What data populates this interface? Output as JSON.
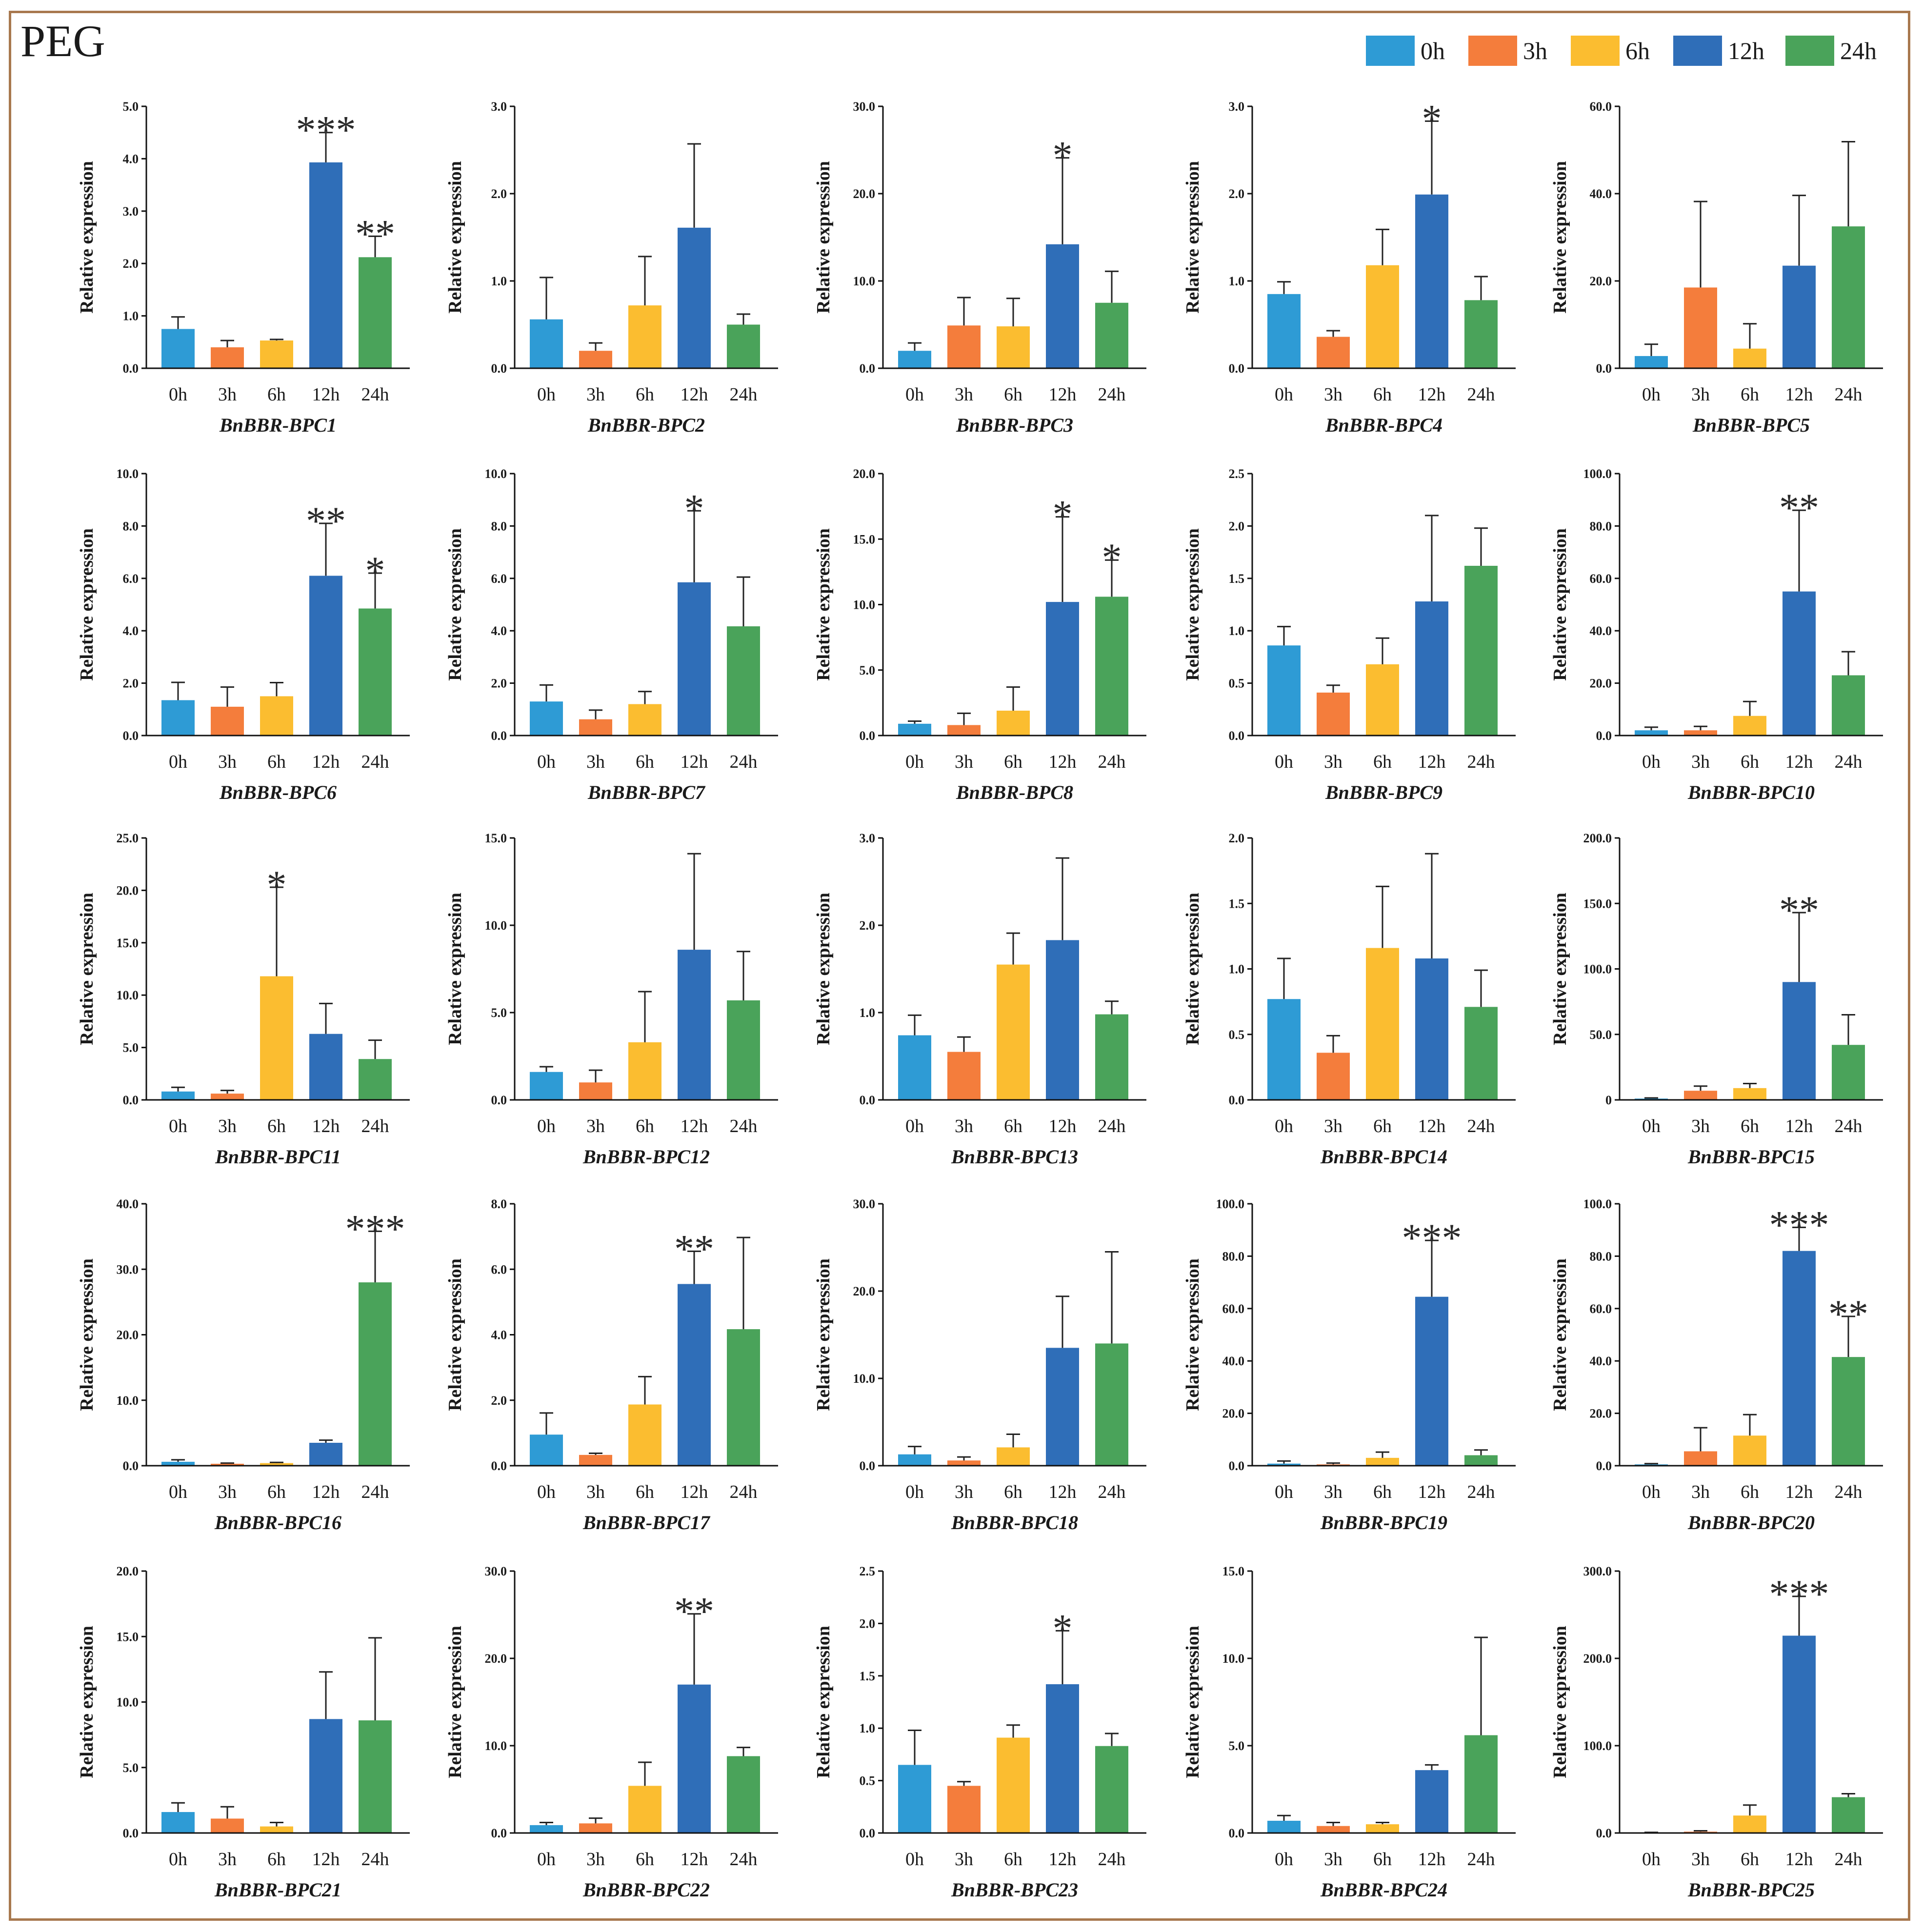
{
  "figure": {
    "title": "PEG",
    "legend": [
      "0h",
      "3h",
      "6h",
      "12h",
      "24h"
    ],
    "colors": [
      "#2e9bd5",
      "#f47d3c",
      "#fbbd30",
      "#2f6eb8",
      "#4aa35a"
    ],
    "ylabel": "Relative expression"
  },
  "chart_data": [
    {
      "type": "bar",
      "title": "BnBBR-BPC1",
      "ylabel": "Relative expression",
      "categories": [
        "0h",
        "3h",
        "6h",
        "12h",
        "24h"
      ],
      "ylim": [
        0,
        5
      ],
      "ticks": [
        "0.0",
        "1.0",
        "2.0",
        "3.0",
        "4.0",
        "5.0"
      ],
      "values": [
        0.75,
        0.4,
        0.53,
        3.93,
        2.12
      ],
      "errors": [
        0.23,
        0.13,
        0.02,
        0.57,
        0.4
      ],
      "annotations": [
        "",
        "",
        "",
        "***",
        "**"
      ]
    },
    {
      "type": "bar",
      "title": "BnBBR-BPC2",
      "ylabel": "Relative expression",
      "categories": [
        "0h",
        "3h",
        "6h",
        "12h",
        "24h"
      ],
      "ylim": [
        0,
        3
      ],
      "ticks": [
        "0.0",
        "1.0",
        "2.0",
        "3.0"
      ],
      "values": [
        0.56,
        0.2,
        0.72,
        1.61,
        0.5
      ],
      "errors": [
        0.48,
        0.09,
        0.56,
        0.96,
        0.12
      ],
      "annotations": [
        "",
        "",
        "",
        "",
        ""
      ]
    },
    {
      "type": "bar",
      "title": "BnBBR-BPC3",
      "ylabel": "Relative expression",
      "categories": [
        "0h",
        "3h",
        "6h",
        "12h",
        "24h"
      ],
      "ylim": [
        0,
        30
      ],
      "ticks": [
        "0.0",
        "10.0",
        "20.0",
        "30.0"
      ],
      "values": [
        2.0,
        4.9,
        4.8,
        14.2,
        7.5
      ],
      "errors": [
        0.9,
        3.2,
        3.2,
        9.9,
        3.6
      ],
      "annotations": [
        "",
        "",
        "",
        "*",
        ""
      ]
    },
    {
      "type": "bar",
      "title": "BnBBR-BPC4",
      "ylabel": "Relative expression",
      "categories": [
        "0h",
        "3h",
        "6h",
        "12h",
        "24h"
      ],
      "ylim": [
        0,
        3
      ],
      "ticks": [
        "0.0",
        "1.0",
        "2.0",
        "3.0"
      ],
      "values": [
        0.85,
        0.36,
        1.18,
        1.99,
        0.78
      ],
      "errors": [
        0.14,
        0.07,
        0.41,
        0.84,
        0.27
      ],
      "annotations": [
        "",
        "",
        "",
        "*",
        ""
      ]
    },
    {
      "type": "bar",
      "title": "BnBBR-BPC5",
      "ylabel": "Relative expression",
      "categories": [
        "0h",
        "3h",
        "6h",
        "12h",
        "24h"
      ],
      "ylim": [
        0,
        60
      ],
      "ticks": [
        "0.0",
        "20.0",
        "40.0",
        "60.0"
      ],
      "values": [
        2.8,
        18.5,
        4.5,
        23.5,
        32.5
      ],
      "errors": [
        2.7,
        19.7,
        5.7,
        16.1,
        19.4
      ],
      "annotations": [
        "",
        "",
        "",
        "",
        ""
      ]
    },
    {
      "type": "bar",
      "title": "BnBBR-BPC6",
      "ylabel": "Relative expression",
      "categories": [
        "0h",
        "3h",
        "6h",
        "12h",
        "24h"
      ],
      "ylim": [
        0,
        10
      ],
      "ticks": [
        "0.0",
        "2.0",
        "4.0",
        "6.0",
        "8.0",
        "10.0"
      ],
      "values": [
        1.35,
        1.1,
        1.5,
        6.1,
        4.85
      ],
      "errors": [
        0.68,
        0.75,
        0.52,
        2.0,
        1.35
      ],
      "annotations": [
        "",
        "",
        "",
        "**",
        "*"
      ]
    },
    {
      "type": "bar",
      "title": "BnBBR-BPC7",
      "ylabel": "Relative expression",
      "categories": [
        "0h",
        "3h",
        "6h",
        "12h",
        "24h"
      ],
      "ylim": [
        0,
        10
      ],
      "ticks": [
        "0.0",
        "2.0",
        "4.0",
        "6.0",
        "8.0",
        "10.0"
      ],
      "values": [
        1.3,
        0.62,
        1.2,
        5.85,
        4.17
      ],
      "errors": [
        0.63,
        0.35,
        0.48,
        2.73,
        1.88
      ],
      "annotations": [
        "",
        "",
        "",
        "*",
        ""
      ]
    },
    {
      "type": "bar",
      "title": "BnBBR-BPC8",
      "ylabel": "Relative expression",
      "categories": [
        "0h",
        "3h",
        "6h",
        "12h",
        "24h"
      ],
      "ylim": [
        0,
        20
      ],
      "ticks": [
        "0.0",
        "5.0",
        "10.0",
        "15.0",
        "20.0"
      ],
      "values": [
        0.9,
        0.8,
        1.9,
        10.2,
        10.6
      ],
      "errors": [
        0.2,
        0.9,
        1.8,
        6.5,
        2.8
      ],
      "annotations": [
        "",
        "",
        "",
        "*",
        "*"
      ]
    },
    {
      "type": "bar",
      "title": "BnBBR-BPC9",
      "ylabel": "Relative expression",
      "categories": [
        "0h",
        "3h",
        "6h",
        "12h",
        "24h"
      ],
      "ylim": [
        0,
        2.5
      ],
      "ticks": [
        "0.0",
        "0.5",
        "1.0",
        "1.5",
        "2.0",
        "2.5"
      ],
      "values": [
        0.86,
        0.41,
        0.68,
        1.28,
        1.62
      ],
      "errors": [
        0.18,
        0.07,
        0.25,
        0.82,
        0.36
      ],
      "annotations": [
        "",
        "",
        "",
        "",
        ""
      ]
    },
    {
      "type": "bar",
      "title": "BnBBR-BPC10",
      "ylabel": "Relative expression",
      "categories": [
        "0h",
        "3h",
        "6h",
        "12h",
        "24h"
      ],
      "ylim": [
        0,
        100
      ],
      "ticks": [
        "0.0",
        "20.0",
        "40.0",
        "60.0",
        "80.0",
        "100.0"
      ],
      "values": [
        2.0,
        2.0,
        7.5,
        55.0,
        23.0
      ],
      "errors": [
        1.2,
        1.5,
        5.5,
        31.0,
        9.0
      ],
      "annotations": [
        "",
        "",
        "",
        "**",
        ""
      ]
    },
    {
      "type": "bar",
      "title": "BnBBR-BPC11",
      "ylabel": "Relative expression",
      "categories": [
        "0h",
        "3h",
        "6h",
        "12h",
        "24h"
      ],
      "ylim": [
        0,
        25
      ],
      "ticks": [
        "0.0",
        "5.0",
        "10.0",
        "15.0",
        "20.0",
        "25.0"
      ],
      "values": [
        0.8,
        0.6,
        11.8,
        6.3,
        3.9
      ],
      "errors": [
        0.4,
        0.3,
        8.5,
        2.9,
        1.8
      ],
      "annotations": [
        "",
        "",
        "*",
        "",
        ""
      ]
    },
    {
      "type": "bar",
      "title": "BnBBR-BPC12",
      "ylabel": "Relative expression",
      "categories": [
        "0h",
        "3h",
        "6h",
        "12h",
        "24h"
      ],
      "ylim": [
        0,
        15
      ],
      "ticks": [
        "0.0",
        "5.0",
        "10.0",
        "15.0"
      ],
      "values": [
        1.6,
        1.0,
        3.3,
        8.6,
        5.7
      ],
      "errors": [
        0.3,
        0.7,
        2.9,
        5.5,
        2.8
      ],
      "annotations": [
        "",
        "",
        "",
        "",
        ""
      ]
    },
    {
      "type": "bar",
      "title": "BnBBR-BPC13",
      "ylabel": "Relative expression",
      "categories": [
        "0h",
        "3h",
        "6h",
        "12h",
        "24h"
      ],
      "ylim": [
        0,
        3
      ],
      "ticks": [
        "0.0",
        "1.0",
        "2.0",
        "3.0"
      ],
      "values": [
        0.74,
        0.55,
        1.55,
        1.83,
        0.98
      ],
      "errors": [
        0.23,
        0.17,
        0.36,
        0.94,
        0.15
      ],
      "annotations": [
        "",
        "",
        "",
        "",
        ""
      ]
    },
    {
      "type": "bar",
      "title": "BnBBR-BPC14",
      "ylabel": "Relative expression",
      "categories": [
        "0h",
        "3h",
        "6h",
        "12h",
        "24h"
      ],
      "ylim": [
        0,
        2
      ],
      "ticks": [
        "0.0",
        "0.5",
        "1.0",
        "1.5",
        "2.0"
      ],
      "values": [
        0.77,
        0.36,
        1.16,
        1.08,
        0.71
      ],
      "errors": [
        0.31,
        0.13,
        0.47,
        0.8,
        0.28
      ],
      "annotations": [
        "",
        "",
        "",
        "",
        ""
      ]
    },
    {
      "type": "bar",
      "title": "BnBBR-BPC15",
      "ylabel": "Relative expression",
      "categories": [
        "0h",
        "3h",
        "6h",
        "12h",
        "24h"
      ],
      "ylim": [
        0,
        200
      ],
      "ticks": [
        "0",
        "50.0",
        "100.0",
        "150.0",
        "200.0"
      ],
      "values": [
        1.0,
        7.0,
        9.0,
        90.0,
        42.0
      ],
      "errors": [
        0.5,
        3.5,
        3.5,
        53.0,
        23.0
      ],
      "annotations": [
        "",
        "",
        "",
        "**",
        ""
      ]
    },
    {
      "type": "bar",
      "title": "BnBBR-BPC16",
      "ylabel": "Relative expression",
      "categories": [
        "0h",
        "3h",
        "6h",
        "12h",
        "24h"
      ],
      "ylim": [
        0,
        40
      ],
      "ticks": [
        "0.0",
        "10.0",
        "20.0",
        "30.0",
        "40.0"
      ],
      "values": [
        0.6,
        0.3,
        0.4,
        3.5,
        28.0
      ],
      "errors": [
        0.3,
        0.1,
        0.1,
        0.4,
        7.8
      ],
      "annotations": [
        "",
        "",
        "",
        "",
        "***"
      ]
    },
    {
      "type": "bar",
      "title": "BnBBR-BPC17",
      "ylabel": "Relative expression",
      "categories": [
        "0h",
        "3h",
        "6h",
        "12h",
        "24h"
      ],
      "ylim": [
        0,
        8
      ],
      "ticks": [
        "0.0",
        "2.0",
        "4.0",
        "6.0",
        "8.0"
      ],
      "values": [
        0.95,
        0.33,
        1.87,
        5.55,
        4.17
      ],
      "errors": [
        0.66,
        0.05,
        0.85,
        1.0,
        2.8
      ],
      "annotations": [
        "",
        "",
        "",
        "**",
        ""
      ]
    },
    {
      "type": "bar",
      "title": "BnBBR-BPC18",
      "ylabel": "Relative expression",
      "categories": [
        "0h",
        "3h",
        "6h",
        "12h",
        "24h"
      ],
      "ylim": [
        0,
        30
      ],
      "ticks": [
        "0.0",
        "10.0",
        "20.0",
        "30.0"
      ],
      "values": [
        1.3,
        0.6,
        2.1,
        13.5,
        14.0
      ],
      "errors": [
        0.9,
        0.4,
        1.5,
        5.9,
        10.5
      ],
      "annotations": [
        "",
        "",
        "",
        "",
        ""
      ]
    },
    {
      "type": "bar",
      "title": "BnBBR-BPC19",
      "ylabel": "Relative expression",
      "categories": [
        "0h",
        "3h",
        "6h",
        "12h",
        "24h"
      ],
      "ylim": [
        0,
        100
      ],
      "ticks": [
        "0.0",
        "20.0",
        "40.0",
        "60.0",
        "80.0",
        "100.0"
      ],
      "values": [
        0.8,
        0.5,
        3.0,
        64.5,
        4.0
      ],
      "errors": [
        1.0,
        0.5,
        2.2,
        21.5,
        2.0
      ],
      "annotations": [
        "",
        "",
        "",
        "***",
        ""
      ]
    },
    {
      "type": "bar",
      "title": "BnBBR-BPC20",
      "ylabel": "Relative expression",
      "categories": [
        "0h",
        "3h",
        "6h",
        "12h",
        "24h"
      ],
      "ylim": [
        0,
        100
      ],
      "ticks": [
        "0.0",
        "20.0",
        "40.0",
        "60.0",
        "80.0",
        "100.0"
      ],
      "values": [
        0.5,
        5.5,
        11.5,
        82.0,
        41.5
      ],
      "errors": [
        0.3,
        9.0,
        8.0,
        9.0,
        15.5
      ],
      "annotations": [
        "",
        "",
        "",
        "***",
        "**"
      ]
    },
    {
      "type": "bar",
      "title": "BnBBR-BPC21",
      "ylabel": "Relative expression",
      "categories": [
        "0h",
        "3h",
        "6h",
        "12h",
        "24h"
      ],
      "ylim": [
        0,
        20
      ],
      "ticks": [
        "0.0",
        "5.0",
        "10.0",
        "15.0",
        "20.0"
      ],
      "values": [
        1.6,
        1.1,
        0.5,
        8.7,
        8.6
      ],
      "errors": [
        0.7,
        0.9,
        0.3,
        3.6,
        6.3
      ],
      "annotations": [
        "",
        "",
        "",
        "",
        ""
      ]
    },
    {
      "type": "bar",
      "title": "BnBBR-BPC22",
      "ylabel": "Relative expression",
      "categories": [
        "0h",
        "3h",
        "6h",
        "12h",
        "24h"
      ],
      "ylim": [
        0,
        30
      ],
      "ticks": [
        "0.0",
        "10.0",
        "20.0",
        "30.0"
      ],
      "values": [
        0.9,
        1.1,
        5.4,
        17.0,
        8.8
      ],
      "errors": [
        0.3,
        0.6,
        2.7,
        8.1,
        1.0
      ],
      "annotations": [
        "",
        "",
        "",
        "**",
        ""
      ]
    },
    {
      "type": "bar",
      "title": "BnBBR-BPC23",
      "ylabel": "Relative expression",
      "categories": [
        "0h",
        "3h",
        "6h",
        "12h",
        "24h"
      ],
      "ylim": [
        0,
        2.5
      ],
      "ticks": [
        "0.0",
        "0.5",
        "1.0",
        "1.5",
        "2.0",
        "2.5"
      ],
      "values": [
        0.65,
        0.45,
        0.91,
        1.42,
        0.83
      ],
      "errors": [
        0.33,
        0.04,
        0.12,
        0.51,
        0.12
      ],
      "annotations": [
        "",
        "",
        "",
        "*",
        ""
      ]
    },
    {
      "type": "bar",
      "title": "BnBBR-BPC24",
      "ylabel": "Relative expression",
      "categories": [
        "0h",
        "3h",
        "6h",
        "12h",
        "24h"
      ],
      "ylim": [
        0,
        15
      ],
      "ticks": [
        "0.0",
        "5.0",
        "10.0",
        "15.0"
      ],
      "values": [
        0.7,
        0.4,
        0.5,
        3.6,
        5.6
      ],
      "errors": [
        0.3,
        0.2,
        0.1,
        0.3,
        5.6
      ],
      "annotations": [
        "",
        "",
        "",
        "",
        ""
      ]
    },
    {
      "type": "bar",
      "title": "BnBBR-BPC25",
      "ylabel": "Relative expression",
      "categories": [
        "0h",
        "3h",
        "6h",
        "12h",
        "24h"
      ],
      "ylim": [
        0,
        300
      ],
      "ticks": [
        "0.0",
        "100.0",
        "200.0",
        "300.0"
      ],
      "values": [
        0.5,
        1.5,
        20.0,
        226.0,
        41.0
      ],
      "errors": [
        0.2,
        1.0,
        12.0,
        45.0,
        4.0
      ],
      "annotations": [
        "",
        "",
        "",
        "***",
        ""
      ]
    }
  ]
}
